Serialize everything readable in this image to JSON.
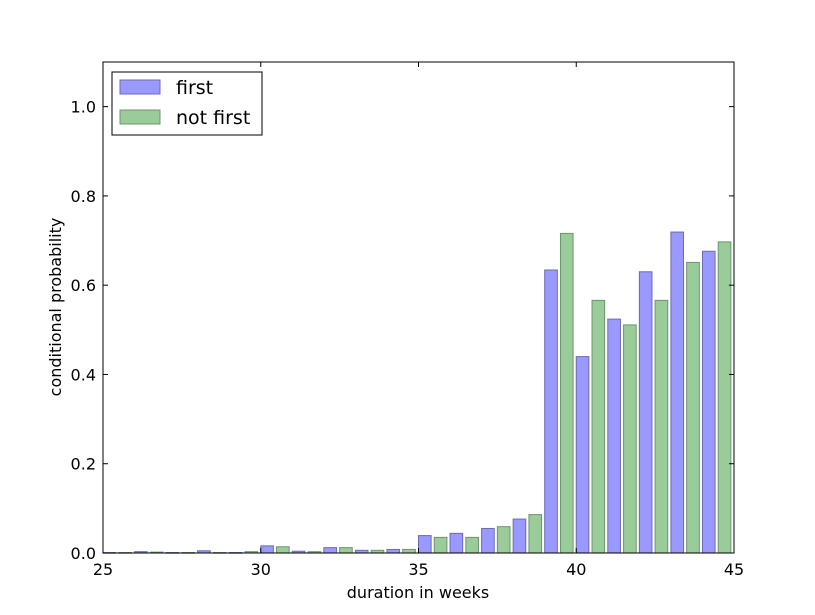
{
  "chart_data": {
    "type": "bar",
    "xlabel": "duration in weeks",
    "ylabel": "conditional probability",
    "xlim": [
      25,
      45
    ],
    "ylim": [
      0,
      1.1
    ],
    "xticks": [
      "25",
      "30",
      "35",
      "40",
      "45"
    ],
    "yticks": [
      "0.0",
      "0.2",
      "0.4",
      "0.6",
      "0.8",
      "1.0"
    ],
    "grid": false,
    "legend_position": "top-left",
    "bar_width": 0.4,
    "series": [
      {
        "name": "first",
        "color": "#9999ff",
        "edge": "#6b6bb0",
        "x": [
          25,
          26,
          27,
          28,
          29,
          30,
          31,
          32,
          33,
          34,
          35,
          36,
          37,
          38,
          39,
          40,
          41,
          42,
          43,
          44
        ],
        "values": [
          0.001,
          0.003,
          0.001,
          0.005,
          0.001,
          0.016,
          0.004,
          0.012,
          0.006,
          0.008,
          0.039,
          0.044,
          0.055,
          0.076,
          0.634,
          0.44,
          0.524,
          0.63,
          0.719,
          0.676
        ]
      },
      {
        "name": "not first",
        "color": "#99cc99",
        "edge": "#6e946e",
        "x": [
          25.5,
          26.5,
          27.5,
          28.5,
          29.5,
          30.5,
          31.5,
          32.5,
          33.5,
          34.5,
          35.5,
          36.5,
          37.5,
          38.5,
          39.5,
          40.5,
          41.5,
          42.5,
          43.5,
          44.5
        ],
        "values": [
          0.001,
          0.002,
          0.001,
          0.001,
          0.003,
          0.014,
          0.003,
          0.012,
          0.006,
          0.008,
          0.035,
          0.035,
          0.059,
          0.086,
          0.716,
          0.566,
          0.511,
          0.566,
          0.651,
          0.697
        ]
      }
    ]
  }
}
